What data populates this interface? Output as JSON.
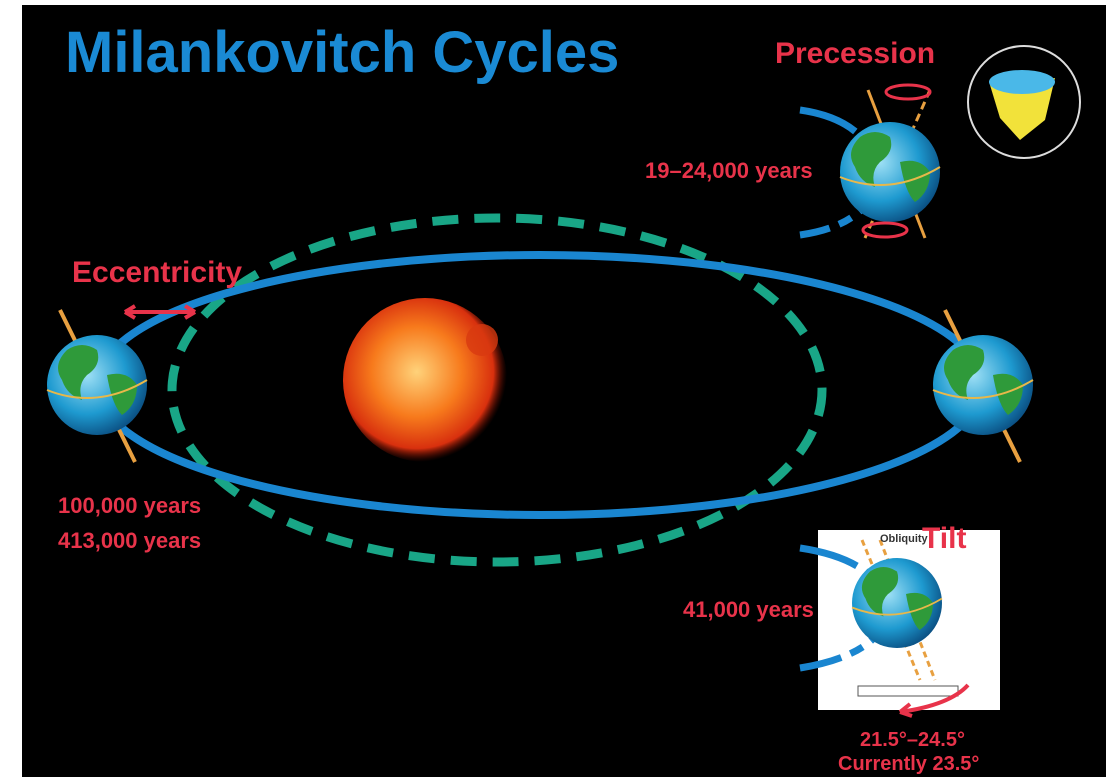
{
  "title": "Milankovitch Cycles",
  "precession": {
    "label": "Precession",
    "period": "19–24,000 years"
  },
  "eccentricity": {
    "label": "Eccentricity",
    "periods": [
      "100,000 years",
      "413,000 years"
    ]
  },
  "tilt": {
    "label": "Tilt",
    "inset_label": "Obliquity",
    "period": "41,000 years",
    "range": "21.5°–24.5°",
    "current": "Currently 23.5°"
  }
}
